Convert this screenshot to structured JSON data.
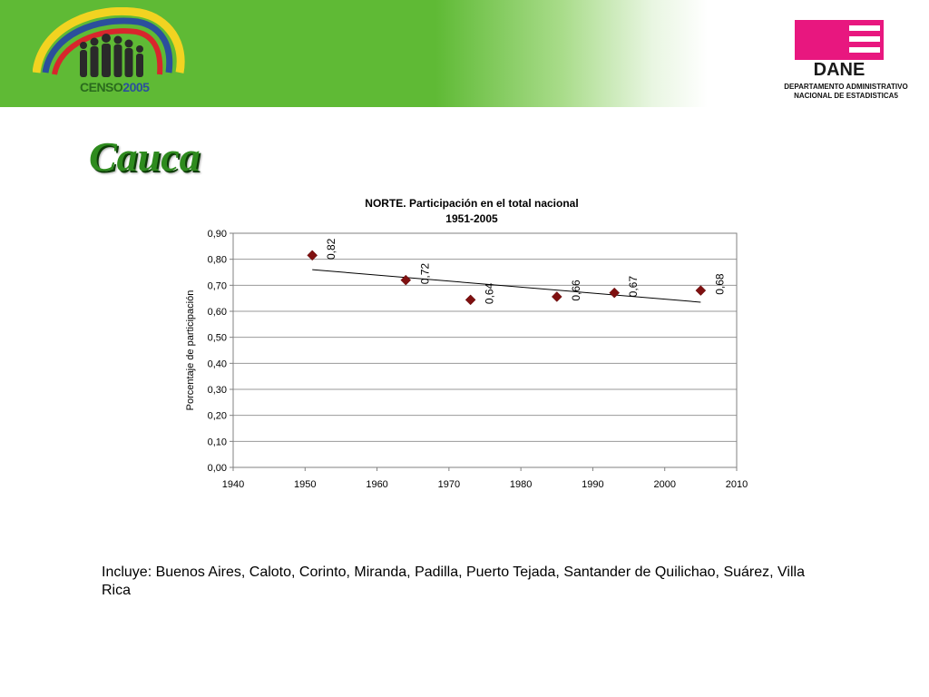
{
  "header": {
    "censo_logo": {
      "word": "CENSO",
      "year": "2005"
    },
    "dane_logo": {
      "text": "DANE",
      "subtitle_line1": "DEPARTAMENTO ADMINISTRATIVO",
      "subtitle_line2": "NACIONAL DE ESTADISTICA5"
    }
  },
  "page": {
    "title": "Cauca"
  },
  "colors": {
    "banner_green": "#5fba35",
    "title_green": "#2e8b1e",
    "marker": "#7f1010",
    "dane_magenta": "#e8177f"
  },
  "chart_data": {
    "type": "scatter",
    "title_line1": "NORTE.  Participación en el total nacional",
    "title_line2": "1951-2005",
    "ylabel": "Porcentaje de participación",
    "xlabel": "",
    "xlim": [
      1940,
      2010
    ],
    "ylim": [
      0,
      0.9
    ],
    "x_ticks": [
      "1940",
      "1950",
      "1960",
      "1970",
      "1980",
      "1990",
      "2000",
      "2010"
    ],
    "y_ticks": [
      "0,00",
      "0,10",
      "0,20",
      "0,30",
      "0,40",
      "0,50",
      "0,60",
      "0,70",
      "0,80",
      "0,90"
    ],
    "grid": "horizontal",
    "trendline": {
      "type": "linear",
      "from": [
        1951,
        0.76
      ],
      "to": [
        2005,
        0.635
      ]
    },
    "points": [
      {
        "x": 1951,
        "y": 0.815,
        "label": "0,82"
      },
      {
        "x": 1964,
        "y": 0.72,
        "label": "0,72"
      },
      {
        "x": 1973,
        "y": 0.644,
        "label": "0,64"
      },
      {
        "x": 1985,
        "y": 0.656,
        "label": "0,66"
      },
      {
        "x": 1993,
        "y": 0.671,
        "label": "0,67"
      },
      {
        "x": 2005,
        "y": 0.68,
        "label": "0,68"
      }
    ]
  },
  "footer": {
    "note": "Incluye: Buenos Aires, Caloto, Corinto, Miranda, Padilla, Puerto Tejada, Santander de Quilichao, Suárez, Villa Rica"
  }
}
